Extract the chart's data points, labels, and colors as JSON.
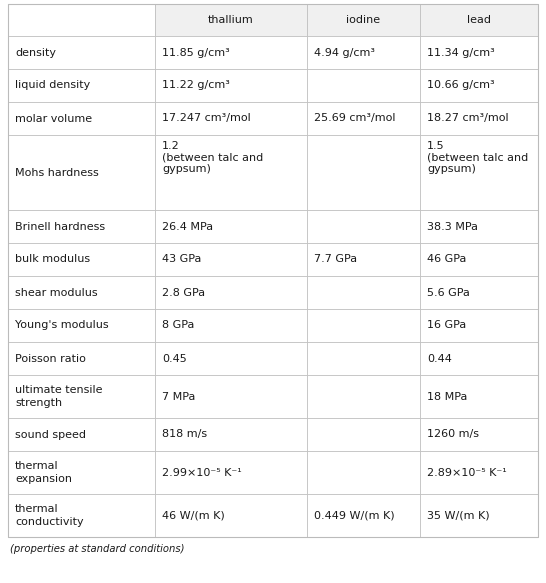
{
  "columns": [
    "",
    "thallium",
    "iodine",
    "lead"
  ],
  "rows": [
    {
      "property": "density",
      "thallium": "11.85 g/cm³",
      "iodine": "4.94 g/cm³",
      "lead": "11.34 g/cm³",
      "mohs": false
    },
    {
      "property": "liquid density",
      "thallium": "11.22 g/cm³",
      "iodine": "",
      "lead": "10.66 g/cm³",
      "mohs": false
    },
    {
      "property": "molar volume",
      "thallium": "17.247 cm³/mol",
      "iodine": "25.69 cm³/mol",
      "lead": "18.27 cm³/mol",
      "mohs": false
    },
    {
      "property": "Mohs hardness",
      "thallium": "1.2\n(between talc and\ngypsum)",
      "iodine": "",
      "lead": "1.5\n(between talc and\ngypsum)",
      "mohs": true
    },
    {
      "property": "Brinell hardness",
      "thallium": "26.4 MPa",
      "iodine": "",
      "lead": "38.3 MPa",
      "mohs": false
    },
    {
      "property": "bulk modulus",
      "thallium": "43 GPa",
      "iodine": "7.7 GPa",
      "lead": "46 GPa",
      "mohs": false
    },
    {
      "property": "shear modulus",
      "thallium": "2.8 GPa",
      "iodine": "",
      "lead": "5.6 GPa",
      "mohs": false
    },
    {
      "property": "Young's modulus",
      "thallium": "8 GPa",
      "iodine": "",
      "lead": "16 GPa",
      "mohs": false
    },
    {
      "property": "Poisson ratio",
      "thallium": "0.45",
      "iodine": "",
      "lead": "0.44",
      "mohs": false
    },
    {
      "property": "ultimate tensile\nstrength",
      "thallium": "7 MPa",
      "iodine": "",
      "lead": "18 MPa",
      "mohs": false
    },
    {
      "property": "sound speed",
      "thallium": "818 m/s",
      "iodine": "",
      "lead": "1260 m/s",
      "mohs": false
    },
    {
      "property": "thermal\nexpansion",
      "thallium": "2.99×10⁻⁵ K⁻¹",
      "iodine": "",
      "lead": "2.89×10⁻⁵ K⁻¹",
      "mohs": false
    },
    {
      "property": "thermal\nconductivity",
      "thallium": "46 W/(m K)",
      "iodine": "0.449 W/(m K)",
      "lead": "35 W/(m K)",
      "mohs": false
    }
  ],
  "footer": "(properties at standard conditions)",
  "bg_color": "#ffffff",
  "text_color": "#1a1a1a",
  "header_bg": "#f0f0f0",
  "grid_color": "#bbbbbb",
  "fig_width": 5.46,
  "fig_height": 5.83,
  "dpi": 100
}
